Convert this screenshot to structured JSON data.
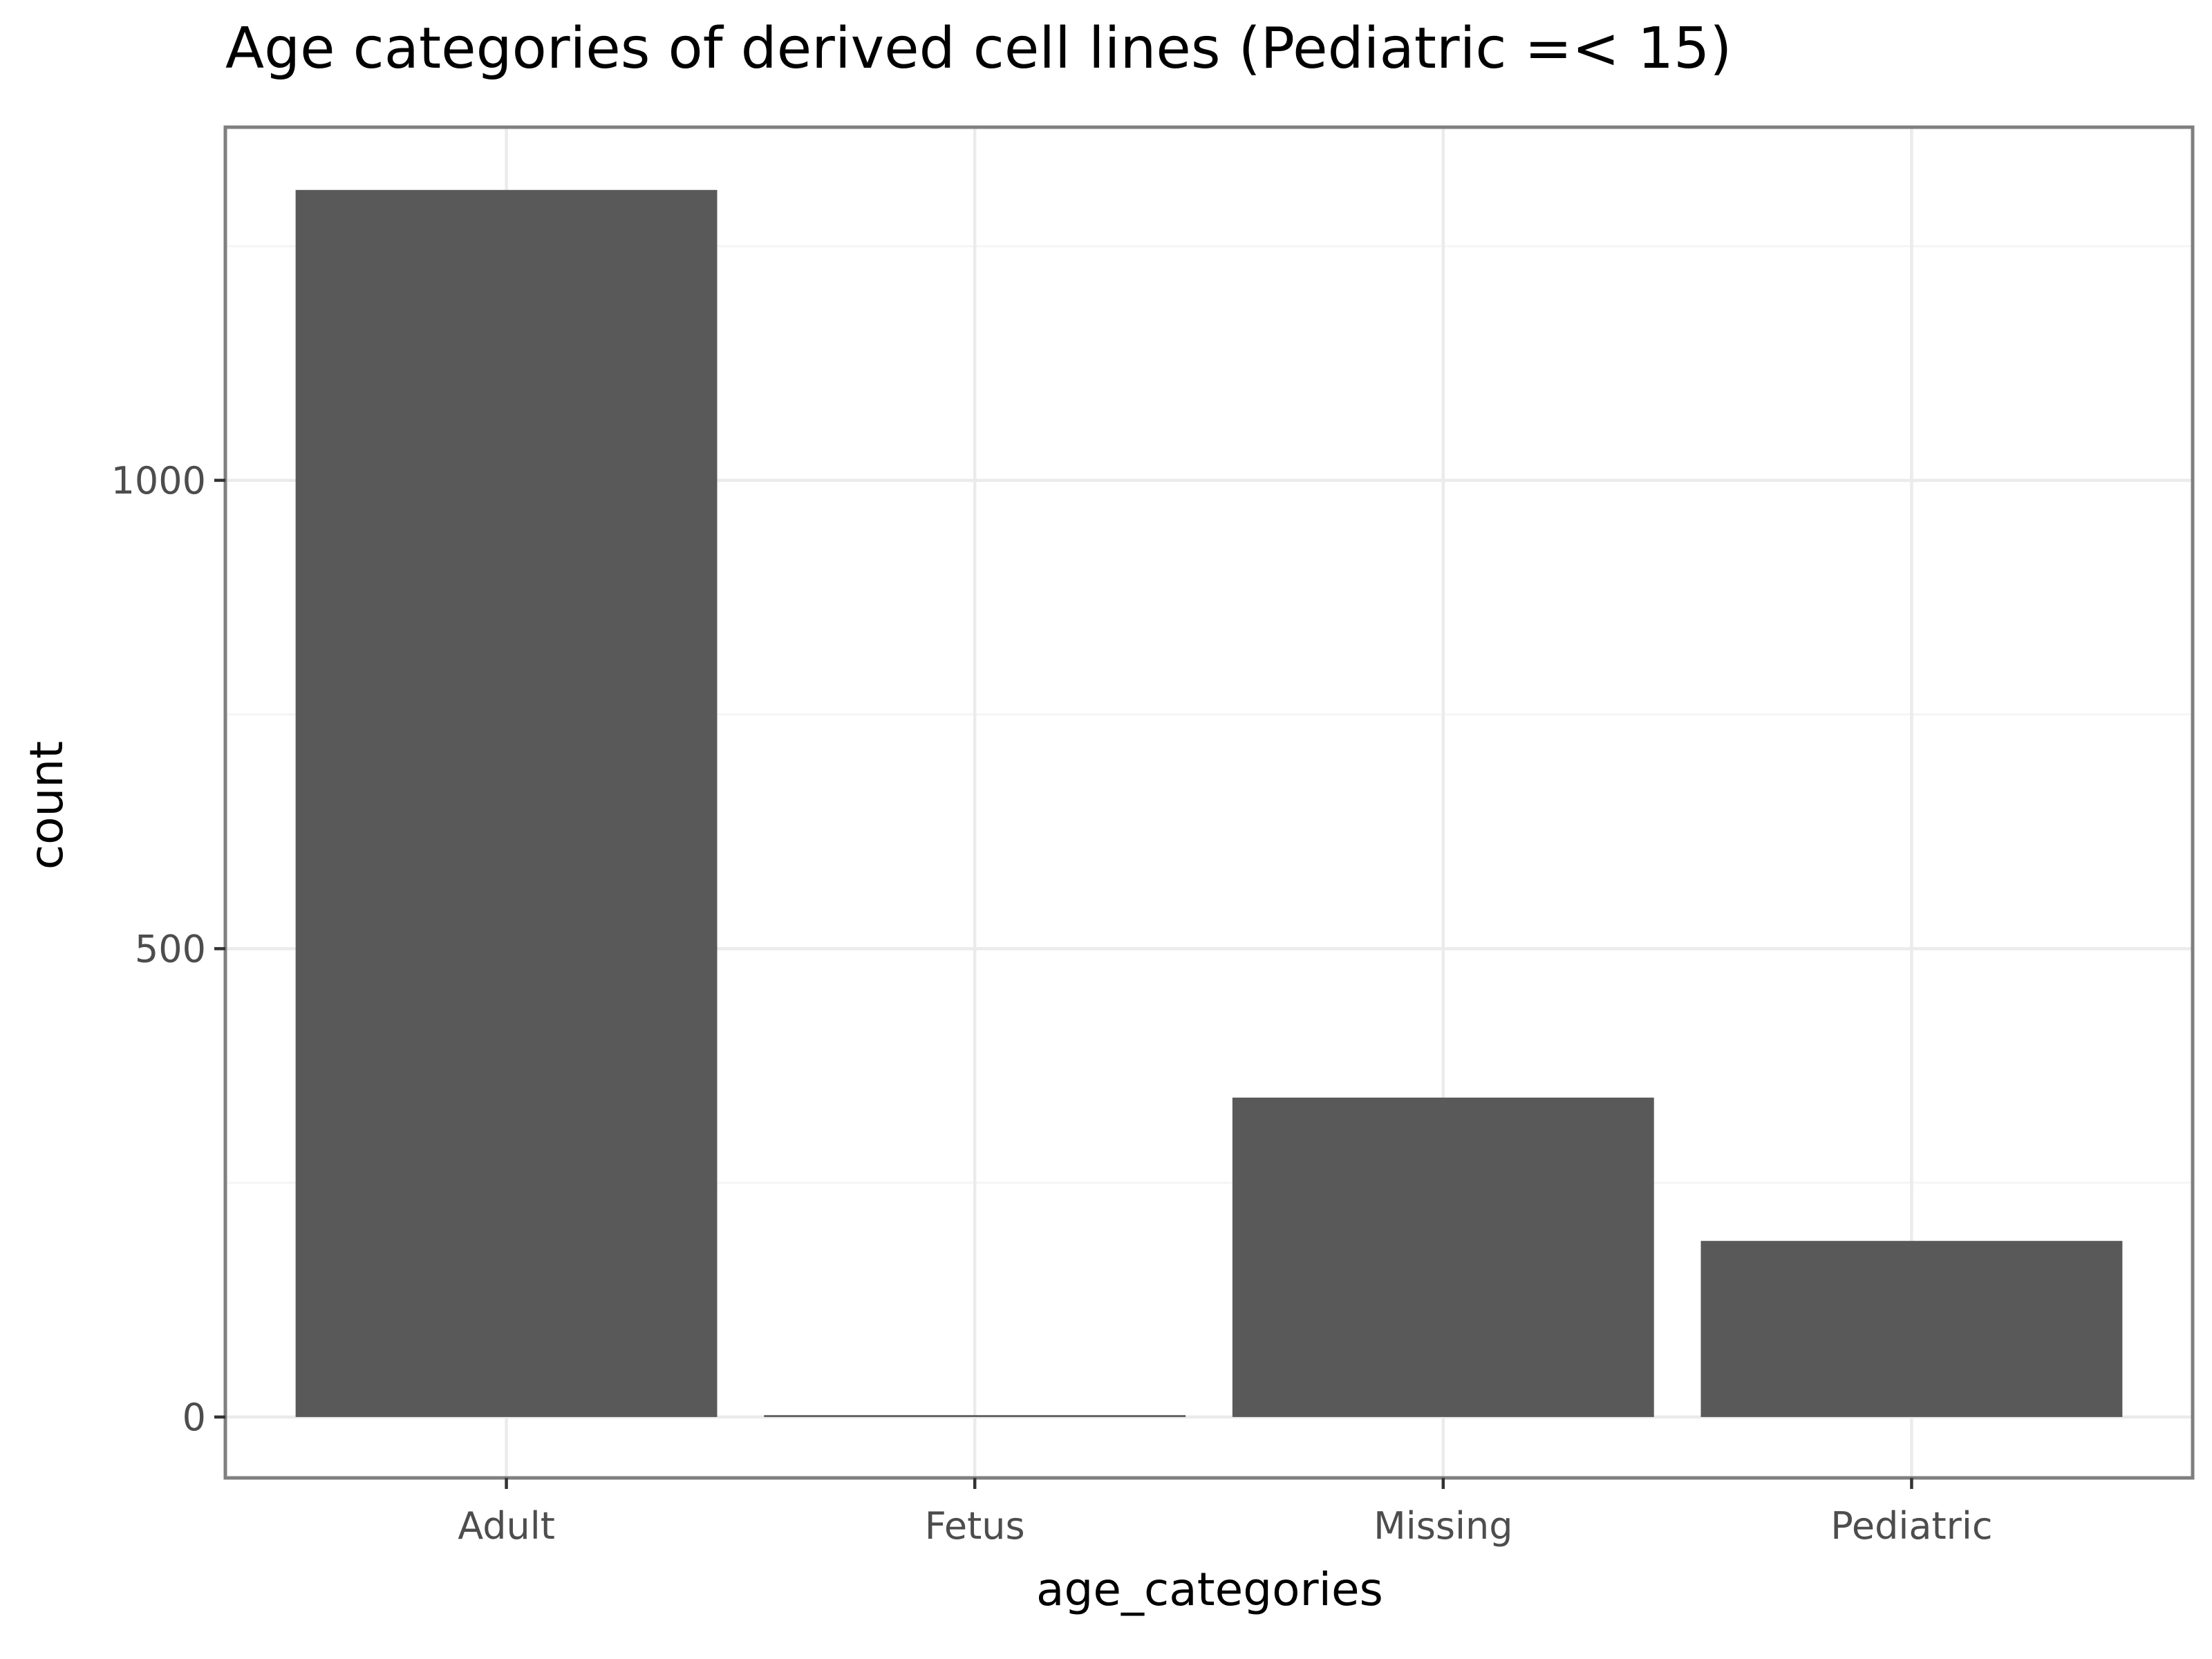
{
  "chart_data": {
    "type": "bar",
    "title": "Age categories of derived cell lines (Pediatric =< 15)",
    "xlabel": "age_categories",
    "ylabel": "count",
    "categories": [
      "Adult",
      "Fetus",
      "Missing",
      "Pediatric"
    ],
    "values": [
      1310,
      2,
      341,
      188
    ],
    "ylim": [
      -65,
      1377
    ],
    "yticks": [
      0,
      500,
      1000
    ],
    "yticks_minor": [
      250,
      750,
      1250
    ],
    "grid": true,
    "legend": "none",
    "colors": {
      "bar": "#595959",
      "grid": "#ebebeb",
      "panel_border": "#7f7f7f"
    }
  }
}
